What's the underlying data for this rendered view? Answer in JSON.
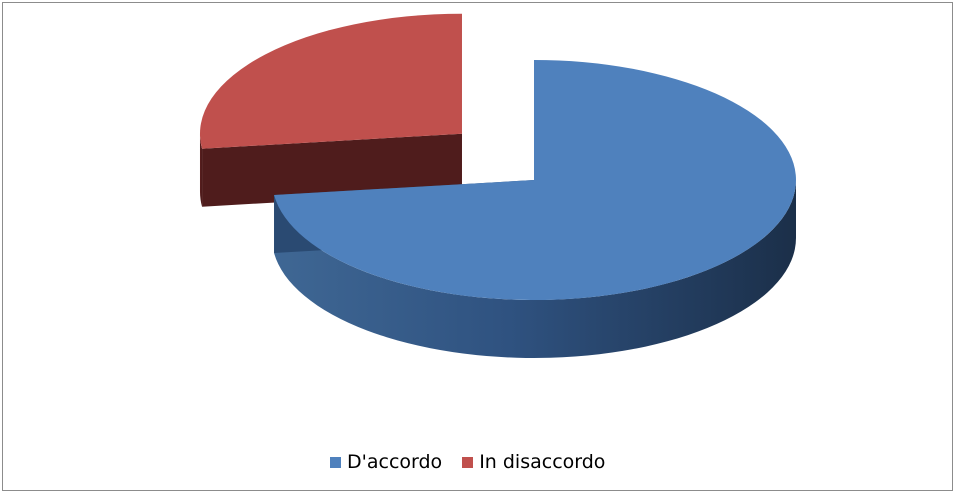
{
  "chart_data": {
    "type": "pie",
    "style": "3d-exploded",
    "title": "",
    "categories": [
      "D'accordo",
      "In disaccordo"
    ],
    "values": [
      73,
      27
    ],
    "unit": "percent",
    "colors": [
      "#4f81bd",
      "#c0504d"
    ],
    "legend": {
      "position": "bottom",
      "items": [
        {
          "label": "D'accordo",
          "color": "#4f81bd"
        },
        {
          "label": "In disaccordo",
          "color": "#c0504d"
        }
      ]
    }
  }
}
